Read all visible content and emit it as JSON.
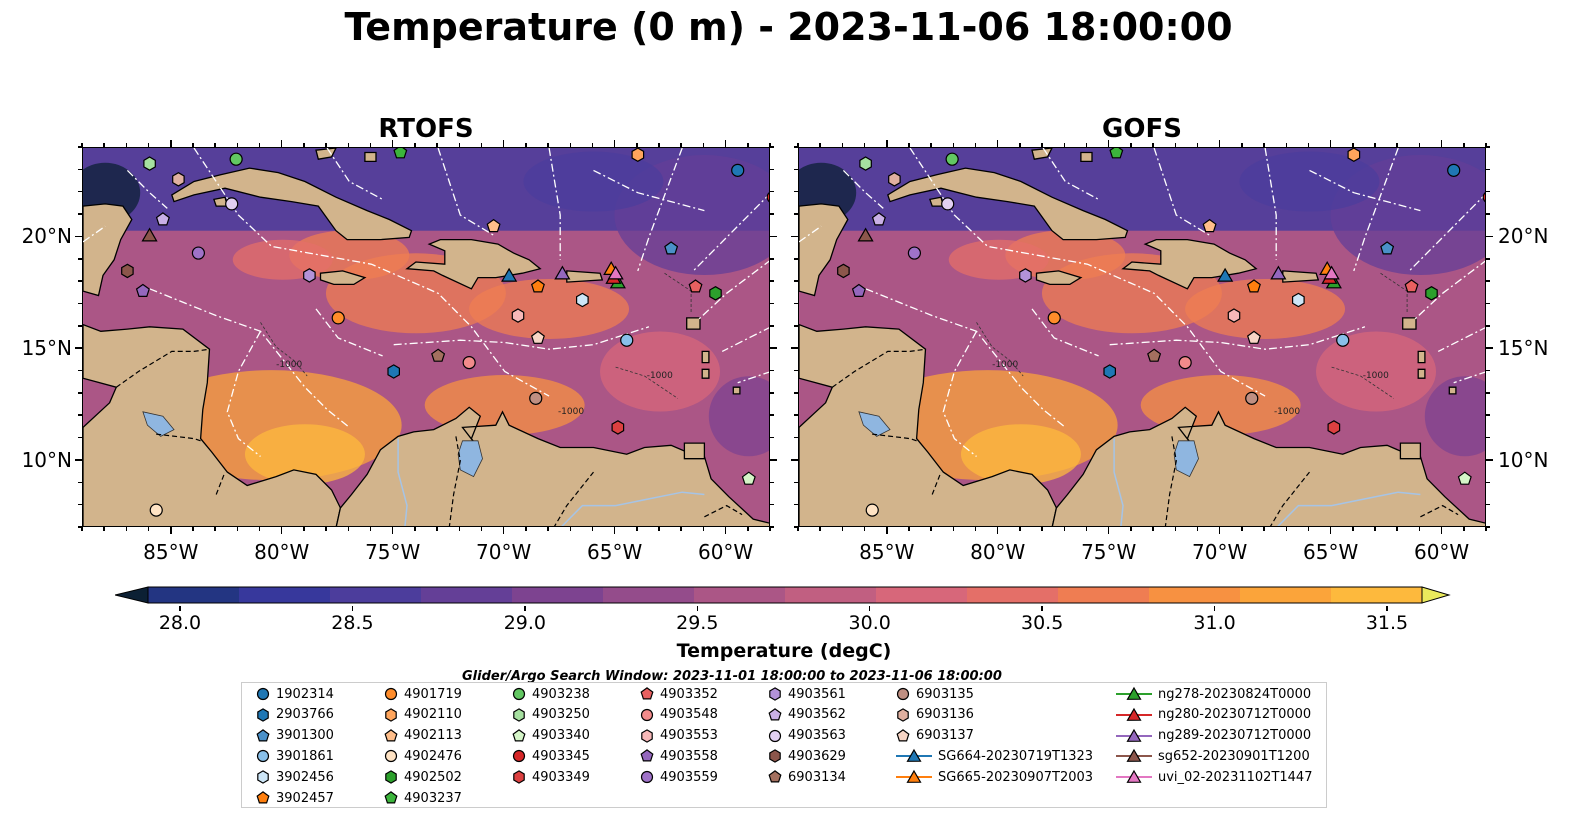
{
  "title": "Temperature (0 m) - 2023-11-06 18:00:00",
  "panels": [
    {
      "title": "RTOFS"
    },
    {
      "title": "GOFS"
    }
  ],
  "map_axes": {
    "lon_extent": [
      -89,
      -58
    ],
    "lat_extent": [
      7,
      24
    ],
    "x_ticks": [
      "85°W",
      "80°W",
      "75°W",
      "70°W",
      "65°W",
      "60°W"
    ],
    "y_ticks": [
      "20°N",
      "15°N",
      "10°N"
    ],
    "y_label_side": {
      "RTOFS": "left",
      "GOFS": "right"
    }
  },
  "map_colors": {
    "land": "#d2b48c",
    "lakes": "#8fb6e0",
    "rivers": "#a6c4e6",
    "coast": "#000000",
    "eez_lines": "#ffffff",
    "bathymetry_contours": "#333333"
  },
  "bathymetry_labels": [
    "-1000",
    "-1000",
    "-1000"
  ],
  "colorbar": {
    "title": "Temperature (degC)",
    "ticks": [
      "28.0",
      "28.5",
      "29.0",
      "29.5",
      "30.0",
      "30.5",
      "31.0",
      "31.5"
    ],
    "range": [
      28.0,
      31.5
    ],
    "extend": "both",
    "colors": [
      "#0c2034",
      "#13294f",
      "#233582",
      "#37389c",
      "#4c3d9c",
      "#643f97",
      "#7d4390",
      "#944c8b",
      "#ab5686",
      "#c15f81",
      "#d7677a",
      "#e46f68",
      "#ef7d52",
      "#f79141",
      "#fba43a",
      "#fdb93d",
      "#f8d049",
      "#eaea5c"
    ]
  },
  "search_window": "Glider/Argo Search Window: 2023-11-01 18:00:00 to 2023-11-06 18:00:00",
  "legend": {
    "items": [
      {
        "label": "1902314",
        "marker": "circle",
        "color": "#1f77b4"
      },
      {
        "label": "2903766",
        "marker": "hexagon",
        "color": "#1f77b4"
      },
      {
        "label": "3901300",
        "marker": "pentagon",
        "color": "#4a90c8"
      },
      {
        "label": "3901861",
        "marker": "circle",
        "color": "#89c0ea"
      },
      {
        "label": "3902456",
        "marker": "hexagon",
        "color": "#cde6f7"
      },
      {
        "label": "3902457",
        "marker": "pentagon",
        "color": "#ff7f0e"
      },
      {
        "label": "4901719",
        "marker": "circle",
        "color": "#ff8c2a"
      },
      {
        "label": "4902110",
        "marker": "hexagon",
        "color": "#ffa55c"
      },
      {
        "label": "4902113",
        "marker": "pentagon",
        "color": "#ffbe8a"
      },
      {
        "label": "4902476",
        "marker": "circle",
        "color": "#ffe3c4"
      },
      {
        "label": "4902502",
        "marker": "hexagon",
        "color": "#2ca02c"
      },
      {
        "label": "4903237",
        "marker": "pentagon",
        "color": "#3cb53c"
      },
      {
        "label": "4903238",
        "marker": "circle",
        "color": "#62c762"
      },
      {
        "label": "4903250",
        "marker": "hexagon",
        "color": "#a6e0a0"
      },
      {
        "label": "4903340",
        "marker": "pentagon",
        "color": "#d5f5c8"
      },
      {
        "label": "4903345",
        "marker": "circle",
        "color": "#d62728"
      },
      {
        "label": "4903349",
        "marker": "hexagon",
        "color": "#dc4040"
      },
      {
        "label": "4903352",
        "marker": "pentagon",
        "color": "#e86060"
      },
      {
        "label": "4903548",
        "marker": "circle",
        "color": "#f28b8b"
      },
      {
        "label": "4903553",
        "marker": "hexagon",
        "color": "#f7b8b8"
      },
      {
        "label": "4903558",
        "marker": "pentagon",
        "color": "#9467bd"
      },
      {
        "label": "4903559",
        "marker": "circle",
        "color": "#9f72c8"
      },
      {
        "label": "4903561",
        "marker": "hexagon",
        "color": "#b392d8"
      },
      {
        "label": "4903562",
        "marker": "pentagon",
        "color": "#c9b0e6"
      },
      {
        "label": "4903563",
        "marker": "circle",
        "color": "#e2d0f2"
      },
      {
        "label": "4903629",
        "marker": "hexagon",
        "color": "#8c564b"
      },
      {
        "label": "6903134",
        "marker": "pentagon",
        "color": "#a4705f"
      },
      {
        "label": "6903135",
        "marker": "circle",
        "color": "#bf8f82"
      },
      {
        "label": "6903136",
        "marker": "hexagon",
        "color": "#e0b0a0"
      },
      {
        "label": "6903137",
        "marker": "pentagon",
        "color": "#f7d5c5"
      },
      {
        "label": "SG664-20230719T1323",
        "marker": "triangle-line",
        "color": "#1f77b4"
      },
      {
        "label": "SG665-20230907T2003",
        "marker": "triangle-line",
        "color": "#ff7f0e"
      },
      {
        "label": "ng278-20230824T0000",
        "marker": "triangle-line",
        "color": "#2ca02c"
      },
      {
        "label": "ng280-20230712T0000",
        "marker": "triangle-line",
        "color": "#d62728"
      },
      {
        "label": "ng289-20230712T0000",
        "marker": "triangle-line",
        "color": "#9467bd"
      },
      {
        "label": "sg652-20230901T1200",
        "marker": "triangle-line",
        "color": "#8c564b"
      },
      {
        "label": "uvi_02-20231102T1447",
        "marker": "triangle-line",
        "color": "#e377c2"
      }
    ]
  },
  "observations": [
    {
      "id": "1902314",
      "lon": -59.5,
      "lat": 23.0
    },
    {
      "id": "2903766",
      "lon": -75.0,
      "lat": 14.0
    },
    {
      "id": "3901300",
      "lon": -62.5,
      "lat": 19.5
    },
    {
      "id": "3901861",
      "lon": -64.5,
      "lat": 15.4
    },
    {
      "id": "3902456",
      "lon": -66.5,
      "lat": 17.2
    },
    {
      "id": "3902457",
      "lon": -68.5,
      "lat": 17.8
    },
    {
      "id": "4901719",
      "lon": -77.5,
      "lat": 16.4
    },
    {
      "id": "4902110",
      "lon": -64.0,
      "lat": 23.7
    },
    {
      "id": "4902113",
      "lon": -70.5,
      "lat": 20.5
    },
    {
      "id": "4902476",
      "lon": -85.7,
      "lat": 7.8
    },
    {
      "id": "4902502",
      "lon": -60.5,
      "lat": 17.5
    },
    {
      "id": "4903237",
      "lon": -74.7,
      "lat": 23.8
    },
    {
      "id": "4903238",
      "lon": -82.1,
      "lat": 23.5
    },
    {
      "id": "4903250",
      "lon": -86.0,
      "lat": 23.3
    },
    {
      "id": "4903340",
      "lon": -59.0,
      "lat": 9.2
    },
    {
      "id": "4903345",
      "lon": -57.9,
      "lat": 21.8
    },
    {
      "id": "4903349",
      "lon": -64.9,
      "lat": 11.5
    },
    {
      "id": "4903352",
      "lon": -61.4,
      "lat": 17.8
    },
    {
      "id": "4903548",
      "lon": -71.6,
      "lat": 14.4
    },
    {
      "id": "4903553",
      "lon": -69.4,
      "lat": 16.5
    },
    {
      "id": "4903558",
      "lon": -86.3,
      "lat": 17.6
    },
    {
      "id": "4903559",
      "lon": -83.8,
      "lat": 19.3
    },
    {
      "id": "4903561",
      "lon": -78.8,
      "lat": 18.3
    },
    {
      "id": "4903562",
      "lon": -85.4,
      "lat": 20.8
    },
    {
      "id": "4903563",
      "lon": -82.3,
      "lat": 21.5
    },
    {
      "id": "4903629",
      "lon": -87.0,
      "lat": 18.5
    },
    {
      "id": "6903134",
      "lon": -73.0,
      "lat": 14.7
    },
    {
      "id": "6903135",
      "lon": -68.6,
      "lat": 12.8
    },
    {
      "id": "6903136",
      "lon": -84.7,
      "lat": 22.6
    },
    {
      "id": "6903137",
      "lon": -68.5,
      "lat": 15.5
    }
  ],
  "glider_tracks": [
    {
      "id": "SG664-20230719T1323",
      "lon": -69.8,
      "lat": 18.3
    },
    {
      "id": "SG665-20230907T2003",
      "lon": -65.2,
      "lat": 18.6
    },
    {
      "id": "ng278-20230824T0000",
      "lon": -64.9,
      "lat": 18.0
    },
    {
      "id": "ng280-20230712T0000",
      "lon": -65.1,
      "lat": 18.2
    },
    {
      "id": "ng289-20230712T0000",
      "lon": -67.4,
      "lat": 18.4
    },
    {
      "id": "sg652-20230901T1200",
      "lon": -86.0,
      "lat": 20.1
    },
    {
      "id": "uvi_02-20231102T1447",
      "lon": -65.0,
      "lat": 18.4
    }
  ]
}
